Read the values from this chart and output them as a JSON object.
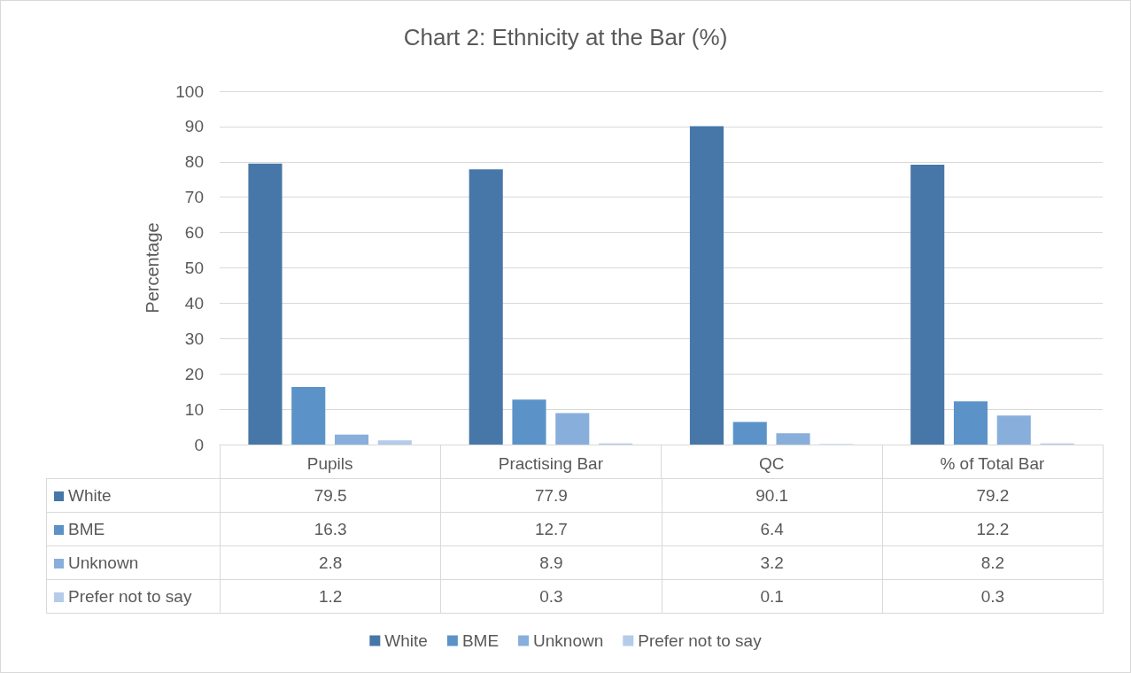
{
  "chart_data": {
    "type": "bar",
    "title": "Chart 2: Ethnicity at the Bar (%)",
    "ylabel": "Percentage",
    "categories": [
      "Pupils",
      "Practising Bar",
      "QC",
      "% of Total Bar"
    ],
    "series": [
      {
        "name": "White",
        "color": "#4677a8",
        "values": [
          79.5,
          77.9,
          90.1,
          79.2
        ]
      },
      {
        "name": "BME",
        "color": "#5b93c8",
        "values": [
          16.3,
          12.7,
          6.4,
          12.2
        ]
      },
      {
        "name": "Unknown",
        "color": "#88aedb",
        "values": [
          2.8,
          8.9,
          3.2,
          8.2
        ]
      },
      {
        "name": "Prefer not to say",
        "color": "#b4cbe9",
        "values": [
          1.2,
          0.3,
          0.1,
          0.3
        ]
      }
    ],
    "ylim": [
      0,
      100
    ],
    "yticks": [
      0,
      10,
      20,
      30,
      40,
      50,
      60,
      70,
      80,
      90,
      100
    ],
    "grid": "y",
    "legend": "bottom",
    "data_labels": true
  }
}
